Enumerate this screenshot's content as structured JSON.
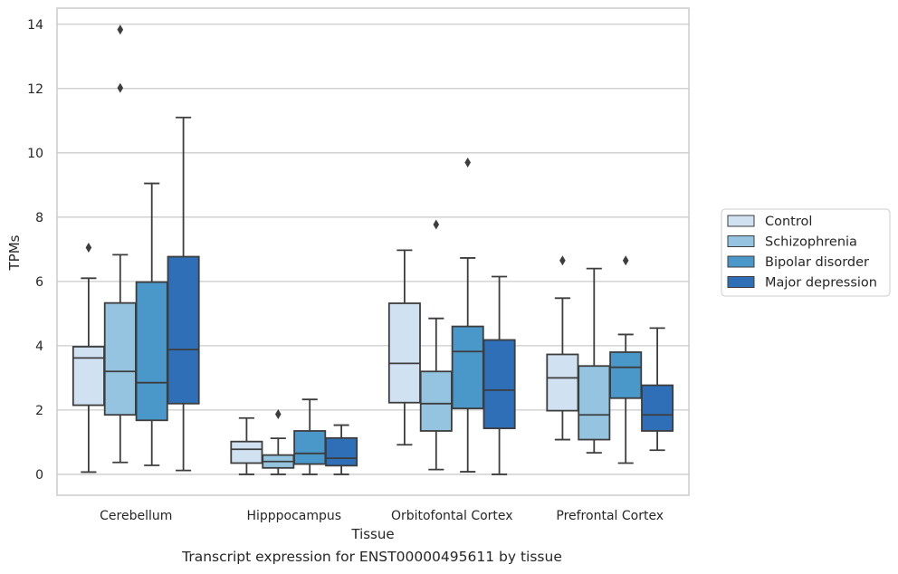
{
  "caption": "Transcript expression for ENST00000495611 by tissue",
  "chart_data": {
    "type": "box",
    "xlabel": "Tissue",
    "ylabel": "TPMs",
    "ylim": [
      -0.65,
      14.5
    ],
    "yticks": [
      0,
      2,
      4,
      6,
      8,
      10,
      12,
      14
    ],
    "grid": true,
    "legend_position": "right",
    "categories": [
      "Cerebellum",
      "Hipppocampus",
      "Orbitofontal Cortex",
      "Prefrontal Cortex"
    ],
    "series": [
      {
        "name": "Control",
        "color": "#d0e1f2",
        "boxes": [
          {
            "whislo": 0.07,
            "q1": 2.15,
            "med": 3.62,
            "q3": 3.97,
            "whishi": 6.1,
            "fliers": [
              7.05
            ]
          },
          {
            "whislo": 0.0,
            "q1": 0.35,
            "med": 0.78,
            "q3": 1.02,
            "whishi": 1.75,
            "fliers": []
          },
          {
            "whislo": 0.92,
            "q1": 2.23,
            "med": 3.45,
            "q3": 5.32,
            "whishi": 6.97,
            "fliers": []
          },
          {
            "whislo": 1.08,
            "q1": 1.98,
            "med": 3.0,
            "q3": 3.73,
            "whishi": 5.48,
            "fliers": [
              6.65
            ]
          }
        ]
      },
      {
        "name": "Schizophrenia",
        "color": "#94c4df",
        "boxes": [
          {
            "whislo": 0.37,
            "q1": 1.85,
            "med": 3.2,
            "q3": 5.33,
            "whishi": 6.83,
            "fliers": [
              12.02,
              13.83
            ]
          },
          {
            "whislo": 0.0,
            "q1": 0.2,
            "med": 0.4,
            "q3": 0.6,
            "whishi": 1.12,
            "fliers": [
              1.87
            ]
          },
          {
            "whislo": 0.15,
            "q1": 1.35,
            "med": 2.2,
            "q3": 3.2,
            "whishi": 4.85,
            "fliers": [
              7.77
            ]
          },
          {
            "whislo": 0.67,
            "q1": 1.08,
            "med": 1.85,
            "q3": 3.37,
            "whishi": 6.4,
            "fliers": []
          }
        ]
      },
      {
        "name": "Bipolar disorder",
        "color": "#4a98c9",
        "boxes": [
          {
            "whislo": 0.28,
            "q1": 1.68,
            "med": 2.85,
            "q3": 5.98,
            "whishi": 9.05,
            "fliers": []
          },
          {
            "whislo": 0.0,
            "q1": 0.32,
            "med": 0.65,
            "q3": 1.35,
            "whishi": 2.33,
            "fliers": []
          },
          {
            "whislo": 0.08,
            "q1": 2.05,
            "med": 3.82,
            "q3": 4.6,
            "whishi": 6.73,
            "fliers": [
              9.7
            ]
          },
          {
            "whislo": 0.35,
            "q1": 2.37,
            "med": 3.33,
            "q3": 3.8,
            "whishi": 4.35,
            "fliers": [
              6.65
            ]
          }
        ]
      },
      {
        "name": "Major depression",
        "color": "#2e6fb7",
        "boxes": [
          {
            "whislo": 0.12,
            "q1": 2.2,
            "med": 3.88,
            "q3": 6.77,
            "whishi": 11.1,
            "fliers": []
          },
          {
            "whislo": 0.0,
            "q1": 0.27,
            "med": 0.5,
            "q3": 1.13,
            "whishi": 1.53,
            "fliers": []
          },
          {
            "whislo": 0.0,
            "q1": 1.43,
            "med": 2.62,
            "q3": 4.18,
            "whishi": 6.15,
            "fliers": []
          },
          {
            "whislo": 0.75,
            "q1": 1.35,
            "med": 1.85,
            "q3": 2.77,
            "whishi": 4.55,
            "fliers": []
          }
        ]
      }
    ]
  }
}
